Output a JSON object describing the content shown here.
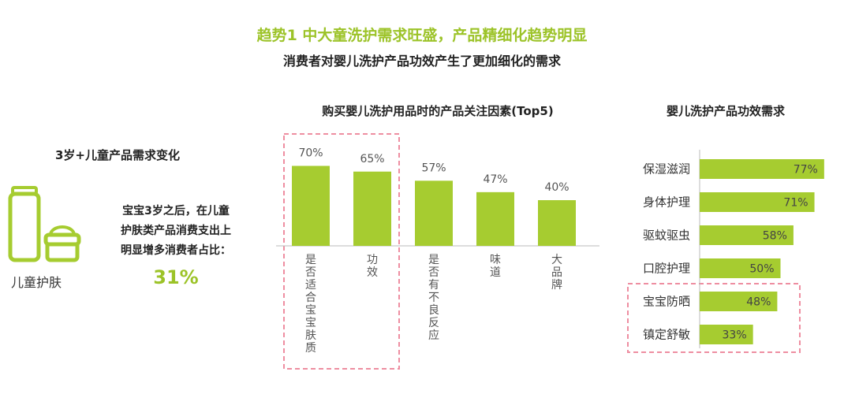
{
  "header": {
    "title": "趋势1 中大童洗护需求旺盛，产品精细化趋势明显",
    "subtitle": "消费者对婴儿洗护产品功效产生了更加细化的需求"
  },
  "left_panel": {
    "title": "3岁+儿童产品需求变化",
    "icon_label": "儿童护肤",
    "text_lines": [
      "宝宝3岁之后，在儿童",
      "护肤类产品消费支出上",
      "明显增多消费者占比："
    ],
    "percent": "31%"
  },
  "colors": {
    "accent": "#9cc328",
    "bar": "#a6cc30",
    "highlight_box": "#ee8ea1"
  },
  "chart_data": [
    {
      "type": "bar",
      "title": "购买婴儿洗护用品时的产品关注因素(Top5)",
      "categories": [
        "是否适合宝宝肤质",
        "功效",
        "是否有不良反应",
        "味道",
        "大品牌"
      ],
      "values": [
        70,
        65,
        57,
        47,
        40
      ],
      "value_labels": [
        "70%",
        "65%",
        "57%",
        "47%",
        "40%"
      ],
      "ylim": [
        0,
        100
      ],
      "highlighted": [
        "是否适合宝宝肤质",
        "功效"
      ]
    },
    {
      "type": "bar",
      "orientation": "horizontal",
      "title": "婴儿洗护产品功效需求",
      "categories": [
        "保湿滋润",
        "身体护理",
        "驱蚊驱虫",
        "口腔护理",
        "宝宝防晒",
        "镇定舒敏"
      ],
      "values": [
        77,
        71,
        58,
        50,
        48,
        33
      ],
      "value_labels": [
        "77%",
        "71%",
        "58%",
        "50%",
        "48%",
        "33%"
      ],
      "xlim": [
        0,
        100
      ],
      "highlighted": [
        "宝宝防晒",
        "镇定舒敏"
      ]
    }
  ]
}
